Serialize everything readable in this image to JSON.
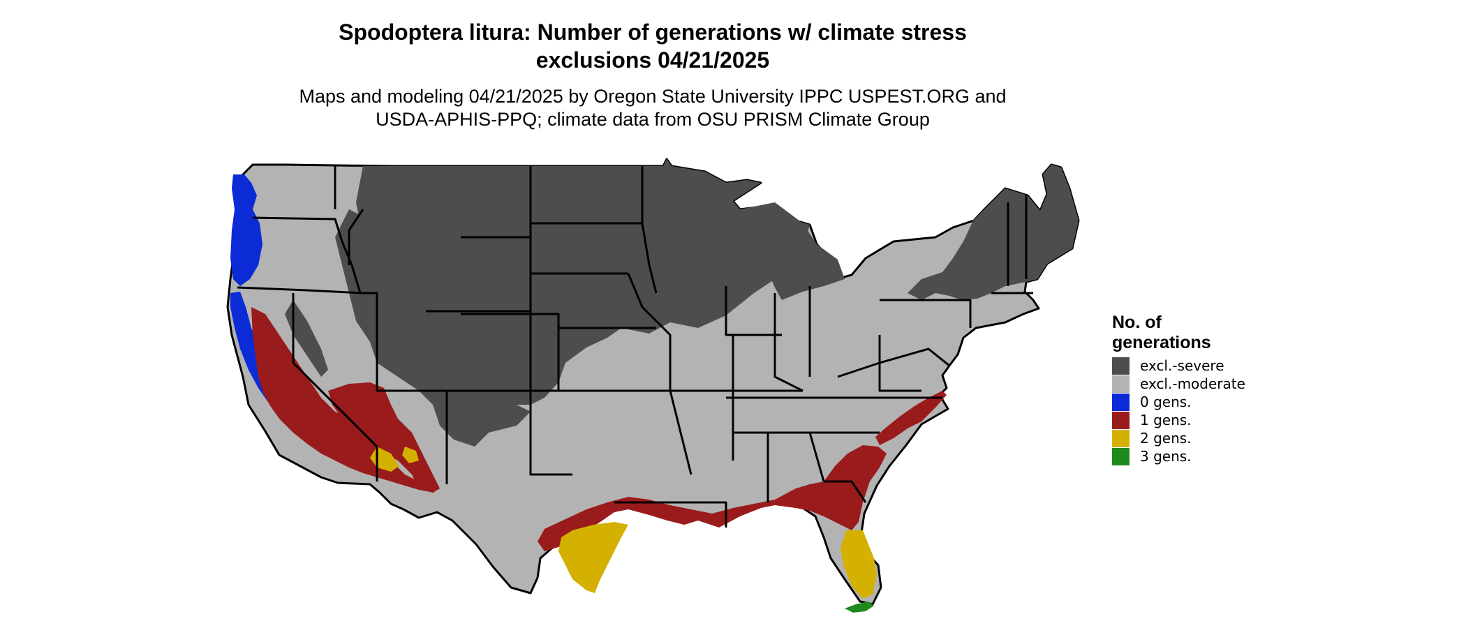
{
  "title_line1": "Spodoptera litura: Number of generations w/ climate stress",
  "title_line2": "exclusions 04/21/2025",
  "subtitle_line1": "Maps and modeling 04/21/2025 by Oregon State University IPPC USPEST.ORG and",
  "subtitle_line2": "USDA-APHIS-PPQ; climate data from OSU PRISM Climate Group",
  "legend": {
    "title_line1": "No. of",
    "title_line2": "generations",
    "items": [
      {
        "label": "excl.-severe",
        "color": "#4d4d4d"
      },
      {
        "label": "excl.-moderate",
        "color": "#b3b3b3"
      },
      {
        "label": "0 gens.",
        "color": "#0a2bd6"
      },
      {
        "label": "1 gens.",
        "color": "#9a1b1b"
      },
      {
        "label": "2 gens.",
        "color": "#d4b100"
      },
      {
        "label": "3 gens.",
        "color": "#1e8a1e"
      }
    ]
  },
  "colors": {
    "severe": "#4d4d4d",
    "moderate": "#b3b3b3",
    "gen0": "#0a2bd6",
    "gen1": "#9a1b1b",
    "gen2": "#d4b100",
    "gen2_light": "#f0df00",
    "gen3": "#1e8a1e",
    "border": "#000000"
  }
}
